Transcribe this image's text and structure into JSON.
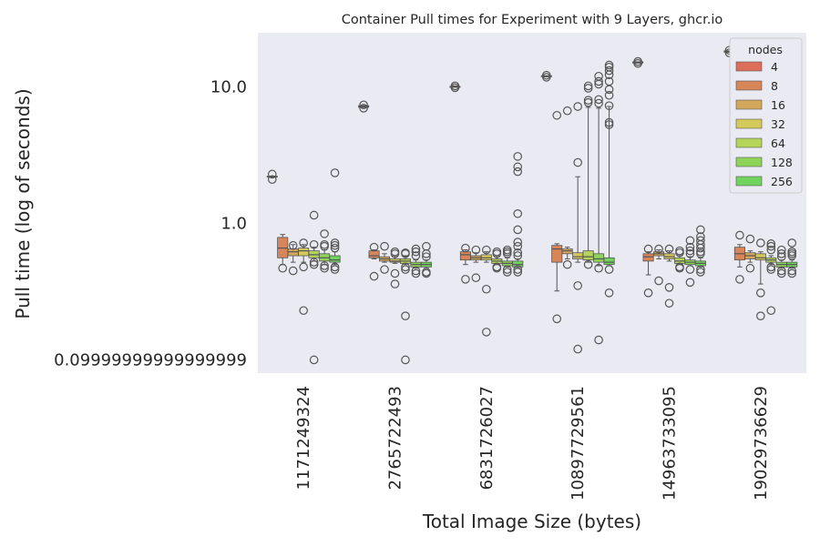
{
  "chart_data": {
    "type": "box",
    "title": "Container Pull times for Experiment with 9 Layers, ghcr.io",
    "xlabel": "Total Image Size (bytes)",
    "ylabel": "Pull time (log of seconds)",
    "yscale": "log",
    "ylim": [
      0.08,
      25
    ],
    "yticks": [
      0.1,
      1.0,
      10.0
    ],
    "ytick_labels": [
      "0.09999999999999999",
      "1.0",
      "10.0"
    ],
    "categories": [
      "1171249324",
      "2765722493",
      "6831726027",
      "10897729561",
      "14963733095",
      "19029736629"
    ],
    "grid": false,
    "legend": {
      "title": "nodes",
      "placement": "top-right",
      "entries": [
        {
          "label": "4",
          "color": "#dc6e5a"
        },
        {
          "label": "8",
          "color": "#d8855a"
        },
        {
          "label": "16",
          "color": "#d4a85a"
        },
        {
          "label": "32",
          "color": "#d4c95a"
        },
        {
          "label": "64",
          "color": "#b5d45a"
        },
        {
          "label": "128",
          "color": "#8fd45a"
        },
        {
          "label": "256",
          "color": "#70d45e"
        }
      ]
    },
    "groups": [
      {
        "category": "1171249324",
        "boxes": [
          {
            "nodes": "4",
            "whislo": 2.2,
            "q1": 2.2,
            "med": 2.2,
            "q3": 2.22,
            "whishi": 2.22,
            "fliers": [
              2.1,
              2.3
            ]
          },
          {
            "nodes": "8",
            "whislo": 0.5,
            "q1": 0.56,
            "med": 0.66,
            "q3": 0.79,
            "whishi": 0.83,
            "fliers": [
              0.47
            ]
          },
          {
            "nodes": "16",
            "whislo": 0.52,
            "q1": 0.58,
            "med": 0.62,
            "q3": 0.65,
            "whishi": 0.7,
            "fliers": [
              0.45,
              0.69
            ]
          },
          {
            "nodes": "32",
            "whislo": 0.52,
            "q1": 0.58,
            "med": 0.63,
            "q3": 0.66,
            "whishi": 0.7,
            "fliers": [
              0.48,
              0.72,
              0.23
            ]
          },
          {
            "nodes": "64",
            "whislo": 0.53,
            "q1": 0.56,
            "med": 0.59,
            "q3": 0.63,
            "whishi": 0.67,
            "fliers": [
              0.5,
              0.52,
              0.7,
              1.15,
              0.1
            ]
          },
          {
            "nodes": "128",
            "whislo": 0.5,
            "q1": 0.53,
            "med": 0.56,
            "q3": 0.6,
            "whishi": 0.64,
            "fliers": [
              0.47,
              0.49,
              0.68,
              0.7,
              0.84
            ]
          },
          {
            "nodes": "256",
            "whislo": 0.5,
            "q1": 0.52,
            "med": 0.54,
            "q3": 0.58,
            "whishi": 0.62,
            "fliers": [
              0.46,
              0.48,
              0.66,
              0.69,
              0.72,
              2.35
            ]
          }
        ]
      },
      {
        "category": "2765722493",
        "boxes": [
          {
            "nodes": "4",
            "whislo": 7.1,
            "q1": 7.1,
            "med": 7.2,
            "q3": 7.3,
            "whishi": 7.3,
            "fliers": [
              7.0,
              7.4
            ]
          },
          {
            "nodes": "8",
            "whislo": 0.55,
            "q1": 0.56,
            "med": 0.58,
            "q3": 0.63,
            "whishi": 0.64,
            "fliers": [
              0.41,
              0.67
            ]
          },
          {
            "nodes": "16",
            "whislo": 0.52,
            "q1": 0.53,
            "med": 0.55,
            "q3": 0.57,
            "whishi": 0.6,
            "fliers": [
              0.46,
              0.68
            ]
          },
          {
            "nodes": "32",
            "whislo": 0.51,
            "q1": 0.52,
            "med": 0.53,
            "q3": 0.55,
            "whishi": 0.58,
            "fliers": [
              0.36,
              0.43,
              0.6,
              0.62
            ]
          },
          {
            "nodes": "64",
            "whislo": 0.5,
            "q1": 0.51,
            "med": 0.53,
            "q3": 0.55,
            "whishi": 0.58,
            "fliers": [
              0.46,
              0.48,
              0.6,
              0.61,
              0.21,
              0.1
            ]
          },
          {
            "nodes": "128",
            "whislo": 0.47,
            "q1": 0.48,
            "med": 0.5,
            "q3": 0.52,
            "whishi": 0.54,
            "fliers": [
              0.43,
              0.45,
              0.58,
              0.62,
              0.65
            ]
          },
          {
            "nodes": "256",
            "whislo": 0.47,
            "q1": 0.48,
            "med": 0.5,
            "q3": 0.52,
            "whishi": 0.54,
            "fliers": [
              0.43,
              0.44,
              0.57,
              0.6,
              0.68
            ]
          }
        ]
      },
      {
        "category": "6831726027",
        "boxes": [
          {
            "nodes": "4",
            "whislo": 10.0,
            "q1": 10.0,
            "med": 10.1,
            "q3": 10.1,
            "whishi": 10.2,
            "fliers": [
              9.9,
              10.2
            ]
          },
          {
            "nodes": "8",
            "whislo": 0.5,
            "q1": 0.54,
            "med": 0.59,
            "q3": 0.62,
            "whishi": 0.64,
            "fliers": [
              0.39,
              0.66
            ]
          },
          {
            "nodes": "16",
            "whislo": 0.52,
            "q1": 0.54,
            "med": 0.56,
            "q3": 0.58,
            "whishi": 0.61,
            "fliers": [
              0.4,
              0.64
            ]
          },
          {
            "nodes": "32",
            "whislo": 0.52,
            "q1": 0.54,
            "med": 0.56,
            "q3": 0.59,
            "whishi": 0.62,
            "fliers": [
              0.33,
              0.64,
              0.16
            ]
          },
          {
            "nodes": "64",
            "whislo": 0.5,
            "q1": 0.51,
            "med": 0.53,
            "q3": 0.55,
            "whishi": 0.58,
            "fliers": [
              0.47,
              0.48,
              0.6,
              0.62
            ]
          },
          {
            "nodes": "128",
            "whislo": 0.48,
            "q1": 0.49,
            "med": 0.51,
            "q3": 0.53,
            "whishi": 0.56,
            "fliers": [
              0.44,
              0.46,
              0.6,
              0.62,
              0.64
            ]
          },
          {
            "nodes": "256",
            "whislo": 0.47,
            "q1": 0.48,
            "med": 0.5,
            "q3": 0.53,
            "whishi": 0.55,
            "fliers": [
              0.44,
              0.46,
              0.58,
              0.61,
              0.68,
              0.73,
              0.9,
              1.18,
              2.4,
              2.6,
              3.1
            ]
          }
        ]
      },
      {
        "category": "10897729561",
        "boxes": [
          {
            "nodes": "4",
            "whislo": 11.9,
            "q1": 11.9,
            "med": 12.0,
            "q3": 12.1,
            "whishi": 12.1,
            "fliers": [
              11.8,
              12.2
            ]
          },
          {
            "nodes": "8",
            "whislo": 0.32,
            "q1": 0.52,
            "med": 0.65,
            "q3": 0.69,
            "whishi": 0.71,
            "fliers": [
              0.2,
              6.2
            ]
          },
          {
            "nodes": "16",
            "whislo": 0.55,
            "q1": 0.6,
            "med": 0.63,
            "q3": 0.65,
            "whishi": 0.67,
            "fliers": [
              0.5,
              6.7
            ]
          },
          {
            "nodes": "32",
            "whislo": 0.52,
            "q1": 0.55,
            "med": 0.57,
            "q3": 0.61,
            "whishi": 2.2,
            "fliers": [
              0.35,
              0.12,
              2.8,
              7.2
            ]
          },
          {
            "nodes": "64",
            "whislo": 0.52,
            "q1": 0.54,
            "med": 0.57,
            "q3": 0.63,
            "whishi": 7.1,
            "fliers": [
              0.5,
              7.7,
              8.0,
              9.8,
              10.2
            ]
          },
          {
            "nodes": "128",
            "whislo": 0.49,
            "q1": 0.52,
            "med": 0.55,
            "q3": 0.6,
            "whishi": 7.0,
            "fliers": [
              0.14,
              0.47,
              7.6,
              8.1,
              10.5,
              11.0,
              12.0
            ]
          },
          {
            "nodes": "256",
            "whislo": 0.49,
            "q1": 0.5,
            "med": 0.52,
            "q3": 0.56,
            "whishi": 7.2,
            "fliers": [
              0.31,
              0.46,
              5.3,
              5.5,
              7.3,
              8.7,
              9.6,
              11.0,
              12.3,
              13.2,
              14.0,
              14.5
            ]
          }
        ]
      },
      {
        "category": "14963733095",
        "boxes": [
          {
            "nodes": "4",
            "whislo": 15.0,
            "q1": 15.0,
            "med": 15.2,
            "q3": 15.3,
            "whishi": 15.3,
            "fliers": [
              14.9,
              15.4
            ]
          },
          {
            "nodes": "8",
            "whislo": 0.42,
            "q1": 0.53,
            "med": 0.57,
            "q3": 0.6,
            "whishi": 0.62,
            "fliers": [
              0.31,
              0.65
            ]
          },
          {
            "nodes": "16",
            "whislo": 0.55,
            "q1": 0.58,
            "med": 0.6,
            "q3": 0.62,
            "whishi": 0.64,
            "fliers": [
              0.38,
              0.65
            ]
          },
          {
            "nodes": "32",
            "whislo": 0.53,
            "q1": 0.55,
            "med": 0.57,
            "q3": 0.6,
            "whishi": 0.63,
            "fliers": [
              0.26,
              0.34,
              0.65
            ]
          },
          {
            "nodes": "64",
            "whislo": 0.5,
            "q1": 0.51,
            "med": 0.53,
            "q3": 0.56,
            "whishi": 0.59,
            "fliers": [
              0.47,
              0.48,
              0.61,
              0.63
            ]
          },
          {
            "nodes": "128",
            "whislo": 0.49,
            "q1": 0.5,
            "med": 0.52,
            "q3": 0.54,
            "whishi": 0.57,
            "fliers": [
              0.37,
              0.46,
              0.6,
              0.63,
              0.67,
              0.75
            ]
          },
          {
            "nodes": "256",
            "whislo": 0.48,
            "q1": 0.49,
            "med": 0.51,
            "q3": 0.53,
            "whishi": 0.56,
            "fliers": [
              0.44,
              0.46,
              0.6,
              0.62,
              0.66,
              0.7,
              0.75,
              0.8,
              0.9
            ]
          }
        ]
      },
      {
        "category": "19029736629",
        "boxes": [
          {
            "nodes": "4",
            "whislo": 18.0,
            "q1": 18.0,
            "med": 18.2,
            "q3": 18.4,
            "whishi": 18.4,
            "fliers": [
              17.8,
              18.6
            ]
          },
          {
            "nodes": "8",
            "whislo": 0.48,
            "q1": 0.54,
            "med": 0.6,
            "q3": 0.67,
            "whishi": 0.7,
            "fliers": [
              0.39,
              0.82
            ]
          },
          {
            "nodes": "16",
            "whislo": 0.52,
            "q1": 0.55,
            "med": 0.58,
            "q3": 0.61,
            "whishi": 0.63,
            "fliers": [
              0.47,
              0.77
            ]
          },
          {
            "nodes": "32",
            "whislo": 0.36,
            "q1": 0.54,
            "med": 0.56,
            "q3": 0.6,
            "whishi": 0.62,
            "fliers": [
              0.21,
              0.31,
              0.72
            ]
          },
          {
            "nodes": "64",
            "whislo": 0.5,
            "q1": 0.52,
            "med": 0.54,
            "q3": 0.56,
            "whishi": 0.58,
            "fliers": [
              0.23,
              0.46,
              0.48,
              0.64,
              0.68,
              0.71
            ]
          },
          {
            "nodes": "128",
            "whislo": 0.47,
            "q1": 0.48,
            "med": 0.5,
            "q3": 0.52,
            "whishi": 0.54,
            "fliers": [
              0.43,
              0.45,
              0.57,
              0.6,
              0.64
            ]
          },
          {
            "nodes": "256",
            "whislo": 0.47,
            "q1": 0.48,
            "med": 0.5,
            "q3": 0.52,
            "whishi": 0.54,
            "fliers": [
              0.43,
              0.45,
              0.58,
              0.6,
              0.62,
              0.72
            ]
          }
        ]
      }
    ]
  }
}
